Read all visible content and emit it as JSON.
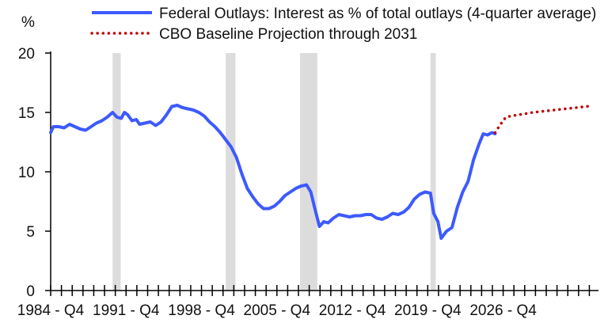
{
  "chart_data": {
    "type": "line",
    "title": "",
    "ylabel": "%",
    "xlabel": "",
    "ylim": [
      0,
      20
    ],
    "yticks": [
      0,
      5,
      10,
      15,
      20
    ],
    "xlim": [
      1984.75,
      2035.6
    ],
    "xticks": [
      {
        "x": 1984.75,
        "label": "1984 - Q4"
      },
      {
        "x": 1991.75,
        "label": "1991 - Q4"
      },
      {
        "x": 1998.75,
        "label": "1998 - Q4"
      },
      {
        "x": 2005.75,
        "label": "2005 - Q4"
      },
      {
        "x": 2012.75,
        "label": "2012 - Q4"
      },
      {
        "x": 2019.75,
        "label": "2019 - Q4"
      },
      {
        "x": 2026.75,
        "label": "2026 - Q4"
      }
    ],
    "grid": false,
    "legend_position": "top",
    "recessions": [
      {
        "start": 1990.5,
        "end": 1991.25
      },
      {
        "start": 2001.0,
        "end": 2001.9
      },
      {
        "start": 2007.9,
        "end": 2009.5
      },
      {
        "start": 2020.0,
        "end": 2020.5
      }
    ],
    "series": [
      {
        "name": "Federal Outlays: Interest as % of total outlays (4-quarter average)",
        "style": "solid",
        "color": "#3d5afe",
        "points": [
          [
            1984.75,
            13.3
          ],
          [
            1985.0,
            13.8
          ],
          [
            1985.5,
            13.8
          ],
          [
            1986.0,
            13.7
          ],
          [
            1986.5,
            14.0
          ],
          [
            1987.0,
            13.8
          ],
          [
            1987.5,
            13.6
          ],
          [
            1988.0,
            13.5
          ],
          [
            1988.5,
            13.8
          ],
          [
            1989.0,
            14.1
          ],
          [
            1989.5,
            14.3
          ],
          [
            1990.0,
            14.6
          ],
          [
            1990.5,
            15.0
          ],
          [
            1990.9,
            14.6
          ],
          [
            1991.3,
            14.5
          ],
          [
            1991.6,
            15.0
          ],
          [
            1991.9,
            14.8
          ],
          [
            1992.3,
            14.3
          ],
          [
            1992.7,
            14.4
          ],
          [
            1993.0,
            14.0
          ],
          [
            1993.5,
            14.1
          ],
          [
            1994.0,
            14.2
          ],
          [
            1994.5,
            13.9
          ],
          [
            1995.0,
            14.2
          ],
          [
            1995.5,
            14.8
          ],
          [
            1996.0,
            15.5
          ],
          [
            1996.5,
            15.6
          ],
          [
            1997.0,
            15.4
          ],
          [
            1997.5,
            15.3
          ],
          [
            1998.0,
            15.2
          ],
          [
            1998.5,
            15.0
          ],
          [
            1999.0,
            14.7
          ],
          [
            1999.5,
            14.2
          ],
          [
            2000.0,
            13.8
          ],
          [
            2000.5,
            13.3
          ],
          [
            2001.0,
            12.7
          ],
          [
            2001.5,
            12.1
          ],
          [
            2002.0,
            11.2
          ],
          [
            2002.5,
            9.8
          ],
          [
            2003.0,
            8.6
          ],
          [
            2003.5,
            7.9
          ],
          [
            2004.0,
            7.3
          ],
          [
            2004.5,
            6.9
          ],
          [
            2005.0,
            6.9
          ],
          [
            2005.5,
            7.1
          ],
          [
            2006.0,
            7.5
          ],
          [
            2006.5,
            8.0
          ],
          [
            2007.0,
            8.3
          ],
          [
            2007.5,
            8.6
          ],
          [
            2008.0,
            8.8
          ],
          [
            2008.5,
            8.9
          ],
          [
            2008.9,
            8.3
          ],
          [
            2009.3,
            6.8
          ],
          [
            2009.7,
            5.4
          ],
          [
            2010.1,
            5.8
          ],
          [
            2010.5,
            5.7
          ],
          [
            2011.0,
            6.1
          ],
          [
            2011.5,
            6.4
          ],
          [
            2012.0,
            6.3
          ],
          [
            2012.5,
            6.2
          ],
          [
            2013.0,
            6.3
          ],
          [
            2013.5,
            6.3
          ],
          [
            2014.0,
            6.4
          ],
          [
            2014.5,
            6.4
          ],
          [
            2015.0,
            6.1
          ],
          [
            2015.5,
            6.0
          ],
          [
            2016.0,
            6.2
          ],
          [
            2016.5,
            6.5
          ],
          [
            2017.0,
            6.4
          ],
          [
            2017.5,
            6.6
          ],
          [
            2018.0,
            7.0
          ],
          [
            2018.5,
            7.7
          ],
          [
            2019.0,
            8.1
          ],
          [
            2019.5,
            8.3
          ],
          [
            2020.0,
            8.2
          ],
          [
            2020.3,
            6.5
          ],
          [
            2020.7,
            5.8
          ],
          [
            2021.0,
            4.4
          ],
          [
            2021.5,
            5.0
          ],
          [
            2022.0,
            5.3
          ],
          [
            2022.5,
            7.0
          ],
          [
            2023.0,
            8.3
          ],
          [
            2023.5,
            9.2
          ],
          [
            2024.0,
            11.0
          ],
          [
            2024.5,
            12.3
          ],
          [
            2024.9,
            13.2
          ],
          [
            2025.3,
            13.1
          ],
          [
            2025.7,
            13.3
          ],
          [
            2026.0,
            13.2
          ]
        ]
      },
      {
        "name": "CBO Baseline Projection through 2031",
        "style": "dotted",
        "color": "#c00000",
        "points": [
          [
            2026.0,
            13.3
          ],
          [
            2026.5,
            14.0
          ],
          [
            2027.0,
            14.6
          ],
          [
            2027.5,
            14.7
          ],
          [
            2028.5,
            14.85
          ],
          [
            2029.5,
            15.0
          ],
          [
            2030.5,
            15.1
          ],
          [
            2031.5,
            15.2
          ],
          [
            2032.5,
            15.3
          ],
          [
            2033.5,
            15.4
          ],
          [
            2034.5,
            15.5
          ],
          [
            2035.0,
            15.55
          ]
        ]
      }
    ]
  }
}
